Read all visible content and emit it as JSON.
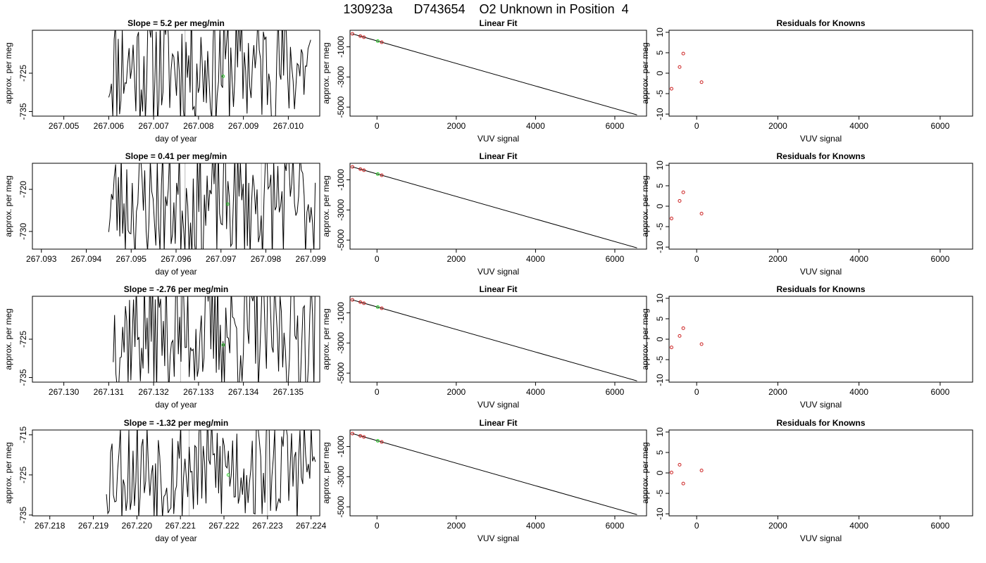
{
  "figure": {
    "title": "130923a      D743654    O2 Unknown in Position  4"
  },
  "colors": {
    "line": "#000000",
    "known_points": "#cc2222",
    "unknown_points": "#22cc22",
    "ref_lines": "#bbbbbb"
  },
  "chart_data": [
    {
      "type": "line",
      "title": "Slope =  5.2  per meg/min",
      "xlabel": "day of year",
      "ylabel": "approx. per meg",
      "xlim": [
        267.0043,
        267.0107
      ],
      "ylim": [
        -736.2,
        -713.8
      ],
      "xticks": [
        "267.005",
        "267.006",
        "267.007",
        "267.008",
        "267.009",
        "267.010"
      ],
      "yticks": [
        "-735",
        "-725"
      ],
      "trace_start": 267.006,
      "trace_end": 267.0105,
      "trace_center": -723,
      "trace_amp": 16,
      "seed": 11,
      "ref_x": 267.0077,
      "unknown_point": [
        267.00855,
        -725.8
      ]
    },
    {
      "type": "scatter",
      "title": "Linear Fit",
      "xlabel": "VUV signal",
      "ylabel": "approx. per meg",
      "xlim": [
        -680,
        6800
      ],
      "ylim": [
        -5600,
        100
      ],
      "xticks": [
        "0",
        "2000",
        "4000",
        "6000"
      ],
      "yticks": [
        "-1000",
        "-3000",
        "-5000"
      ],
      "fit_line": [
        [
          -620,
          -140
        ],
        [
          6560,
          -5520
        ]
      ],
      "known_points": [
        [
          -620,
          -140
        ],
        [
          -420,
          -290
        ],
        [
          -330,
          -360
        ],
        [
          120,
          -695
        ]
      ],
      "unknown_points": [
        [
          20,
          -620
        ]
      ]
    },
    {
      "type": "scatter",
      "title": "Residuals for Knowns",
      "xlabel": "VUV signal",
      "ylabel": "approx. per meg",
      "xlim": [
        -680,
        6800
      ],
      "ylim": [
        -10.5,
        10.5
      ],
      "xticks": [
        "0",
        "2000",
        "4000",
        "6000"
      ],
      "yticks": [
        "-10",
        "-5",
        "0",
        "5",
        "10"
      ],
      "points": [
        [
          -620,
          -3.8
        ],
        [
          -420,
          1.5
        ],
        [
          -330,
          4.8
        ],
        [
          120,
          -2.2
        ]
      ]
    },
    {
      "type": "line",
      "title": "Slope =  0.41  per meg/min",
      "xlabel": "day of year",
      "ylabel": "approx. per meg",
      "xlim": [
        267.0928,
        267.0992
      ],
      "ylim": [
        -734.2,
        -713.8
      ],
      "xticks": [
        "267.093",
        "267.094",
        "267.095",
        "267.096",
        "267.097",
        "267.098",
        "267.099"
      ],
      "yticks": [
        "-730",
        "-720"
      ],
      "trace_start": 267.0945,
      "trace_end": 267.0991,
      "trace_center": -723,
      "trace_amp": 14,
      "seed": 23,
      "ref_x": 267.0962,
      "ref_x2": 267.0979,
      "unknown_point": [
        267.09715,
        -723.5
      ]
    },
    {
      "type": "scatter",
      "title": "Linear Fit",
      "xlabel": "VUV signal",
      "ylabel": "approx. per meg",
      "xlim": [
        -680,
        6800
      ],
      "ylim": [
        -5600,
        100
      ],
      "xticks": [
        "0",
        "2000",
        "4000",
        "6000"
      ],
      "yticks": [
        "-1000",
        "-3000",
        "-5000"
      ],
      "fit_line": [
        [
          -620,
          -140
        ],
        [
          6560,
          -5520
        ]
      ],
      "known_points": [
        [
          -620,
          -140
        ],
        [
          -420,
          -290
        ],
        [
          -330,
          -360
        ],
        [
          120,
          -695
        ]
      ],
      "unknown_points": [
        [
          20,
          -620
        ]
      ]
    },
    {
      "type": "scatter",
      "title": "Residuals for Knowns",
      "xlabel": "VUV signal",
      "ylabel": "approx. per meg",
      "xlim": [
        -680,
        6800
      ],
      "ylim": [
        -10.5,
        10.5
      ],
      "xticks": [
        "0",
        "2000",
        "4000",
        "6000"
      ],
      "yticks": [
        "-10",
        "-5",
        "0",
        "5",
        "10"
      ],
      "points": [
        [
          -620,
          -3.0
        ],
        [
          -420,
          1.3
        ],
        [
          -330,
          3.4
        ],
        [
          120,
          -1.8
        ]
      ]
    },
    {
      "type": "line",
      "title": "Slope =  -2.76  per meg/min",
      "xlabel": "day of year",
      "ylabel": "approx. per meg",
      "xlim": [
        267.1293,
        267.1357
      ],
      "ylim": [
        -736.2,
        -713.8
      ],
      "xticks": [
        "267.130",
        "267.131",
        "267.132",
        "267.133",
        "267.134",
        "267.135"
      ],
      "yticks": [
        "-735",
        "-725"
      ],
      "trace_start": 267.1311,
      "trace_end": 267.1356,
      "trace_center": -723,
      "trace_amp": 16,
      "seed": 37,
      "ref_x": 267.1326,
      "unknown_point": [
        267.13355,
        -726.5
      ]
    },
    {
      "type": "scatter",
      "title": "Linear Fit",
      "xlabel": "VUV signal",
      "ylabel": "approx. per meg",
      "xlim": [
        -680,
        6800
      ],
      "ylim": [
        -5600,
        100
      ],
      "xticks": [
        "0",
        "2000",
        "4000",
        "6000"
      ],
      "yticks": [
        "-1000",
        "-3000",
        "-5000"
      ],
      "fit_line": [
        [
          -620,
          -140
        ],
        [
          6560,
          -5520
        ]
      ],
      "known_points": [
        [
          -620,
          -140
        ],
        [
          -420,
          -290
        ],
        [
          -330,
          -360
        ],
        [
          120,
          -695
        ]
      ],
      "unknown_points": [
        [
          20,
          -620
        ]
      ]
    },
    {
      "type": "scatter",
      "title": "Residuals for Knowns",
      "xlabel": "VUV signal",
      "ylabel": "approx. per meg",
      "xlim": [
        -680,
        6800
      ],
      "ylim": [
        -10.5,
        10.5
      ],
      "xticks": [
        "0",
        "2000",
        "4000",
        "6000"
      ],
      "yticks": [
        "-10",
        "-5",
        "0",
        "5",
        "10"
      ],
      "points": [
        [
          -620,
          -2.0
        ],
        [
          -420,
          0.8
        ],
        [
          -330,
          2.7
        ],
        [
          120,
          -1.2
        ]
      ]
    },
    {
      "type": "line",
      "title": "Slope =  -1.32  per meg/min",
      "xlabel": "day of year",
      "ylabel": "approx. per meg",
      "xlim": [
        267.2176,
        267.2242
      ],
      "ylim": [
        -735.2,
        -713.8
      ],
      "xticks": [
        "267.218",
        "267.219",
        "267.220",
        "267.221",
        "267.222",
        "267.223",
        "267.224"
      ],
      "yticks": [
        "-715",
        "-725",
        "-735"
      ],
      "trace_start": 267.2193,
      "trace_end": 267.2241,
      "trace_center": -723,
      "trace_amp": 14,
      "seed": 53,
      "ref_x": 267.2212,
      "ref_x2": 267.223,
      "unknown_point": [
        267.2221,
        -725
      ]
    },
    {
      "type": "scatter",
      "title": "Linear Fit",
      "xlabel": "VUV signal",
      "ylabel": "approx. per meg",
      "xlim": [
        -680,
        6800
      ],
      "ylim": [
        -5600,
        100
      ],
      "xticks": [
        "0",
        "2000",
        "4000",
        "6000"
      ],
      "yticks": [
        "-1000",
        "-3000",
        "-5000"
      ],
      "fit_line": [
        [
          -620,
          -140
        ],
        [
          6560,
          -5520
        ]
      ],
      "known_points": [
        [
          -620,
          -140
        ],
        [
          -420,
          -290
        ],
        [
          -330,
          -360
        ],
        [
          120,
          -695
        ]
      ],
      "unknown_points": [
        [
          20,
          -620
        ]
      ]
    },
    {
      "type": "scatter",
      "title": "Residuals for Knowns",
      "xlabel": "VUV signal",
      "ylabel": "approx. per meg",
      "xlim": [
        -680,
        6800
      ],
      "ylim": [
        -10.5,
        10.5
      ],
      "xticks": [
        "0",
        "2000",
        "4000",
        "6000"
      ],
      "yticks": [
        "-10",
        "-5",
        "0",
        "5",
        "10"
      ],
      "points": [
        [
          -620,
          0.1
        ],
        [
          -420,
          2.0
        ],
        [
          -330,
          -2.6
        ],
        [
          120,
          0.6
        ]
      ]
    }
  ]
}
